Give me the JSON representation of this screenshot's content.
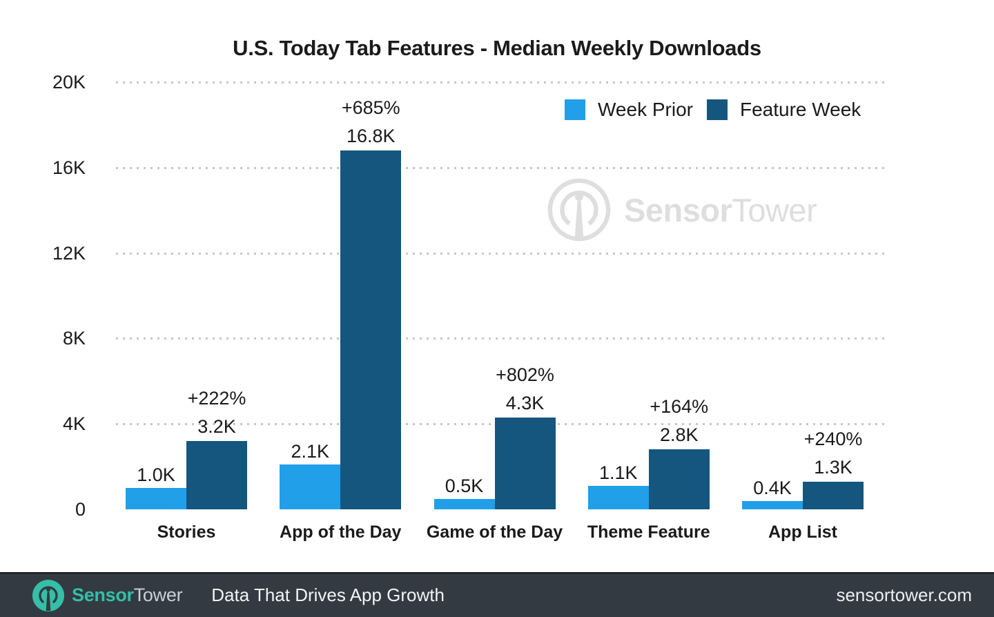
{
  "title": "U.S. Today Tab Features - Median Weekly Downloads",
  "colors": {
    "week_prior": "#219fe8",
    "feature_week": "#15567e",
    "grid_dots": "#c7c7c7",
    "footer_bg": "#333a42",
    "brand_teal": "#35bea8",
    "watermark_gray": "#dedede"
  },
  "legend": [
    {
      "label": "Week Prior",
      "color": "#219fe8"
    },
    {
      "label": "Feature Week",
      "color": "#15567e"
    }
  ],
  "chart_data": {
    "type": "bar",
    "title": "U.S. Today Tab Features - Median Weekly Downloads",
    "categories": [
      "Stories",
      "App of the Day",
      "Game of the Day",
      "Theme Feature",
      "App List"
    ],
    "series": [
      {
        "name": "Week Prior",
        "color": "#219fe8",
        "values": [
          1000,
          2100,
          500,
          1100,
          400
        ],
        "value_labels": [
          "1.0K",
          "2.1K",
          "0.5K",
          "1.1K",
          "0.4K"
        ]
      },
      {
        "name": "Feature Week",
        "color": "#15567e",
        "values": [
          3200,
          16800,
          4300,
          2800,
          1300
        ],
        "value_labels": [
          "3.2K",
          "16.8K",
          "4.3K",
          "2.8K",
          "1.3K"
        ]
      }
    ],
    "pct_change_labels": [
      "+222%",
      "+685%",
      "+802%",
      "+164%",
      "+240%"
    ],
    "ylim": [
      0,
      20000
    ],
    "yticks": [
      {
        "value": 0,
        "label": "0"
      },
      {
        "value": 4000,
        "label": "4K"
      },
      {
        "value": 8000,
        "label": "8K"
      },
      {
        "value": 12000,
        "label": "12K"
      },
      {
        "value": 16000,
        "label": "16K"
      },
      {
        "value": 20000,
        "label": "20K"
      }
    ],
    "grid": "horizontal dotted",
    "legend_position": "top-right"
  },
  "watermark": {
    "brand_bold": "Sensor",
    "brand_light": "Tower"
  },
  "footer": {
    "brand_bold": "Sensor",
    "brand_light": "Tower",
    "tagline": "Data That Drives App Growth",
    "url": "sensortower.com"
  }
}
